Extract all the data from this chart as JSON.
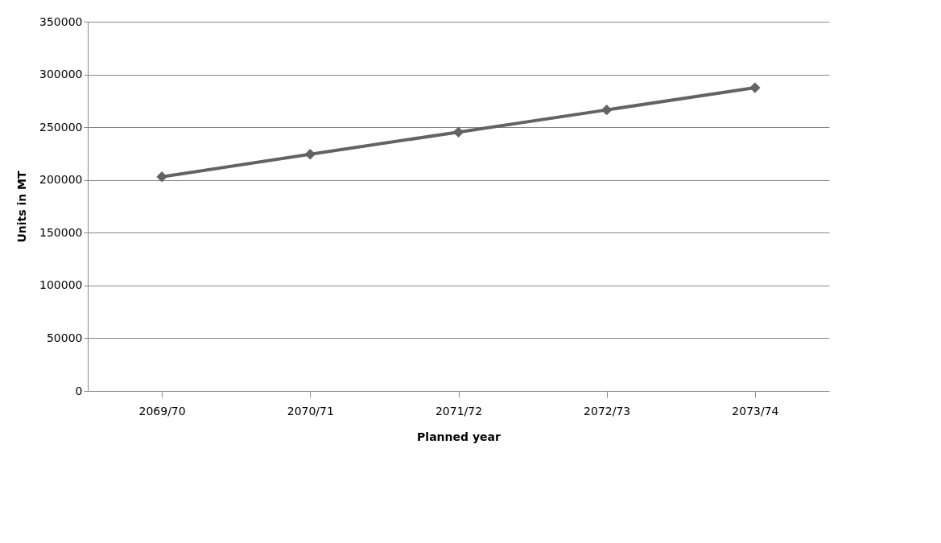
{
  "chart_data": {
    "type": "line",
    "xlabel": "Planned year",
    "ylabel": "Units in MT",
    "categories": [
      "2069/70",
      "2070/71",
      "2071/72",
      "2072/73",
      "2073/74"
    ],
    "series": [
      {
        "color": "#636363",
        "values": [
          203000,
          224400,
          245400,
          266400,
          287400
        ]
      }
    ],
    "ylim": [
      0,
      350000
    ],
    "yticks": [
      0,
      50000,
      100000,
      150000,
      200000,
      250000,
      300000,
      350000
    ],
    "grid": "y",
    "legend": false,
    "marker": "diamond",
    "line_style": "solid"
  }
}
